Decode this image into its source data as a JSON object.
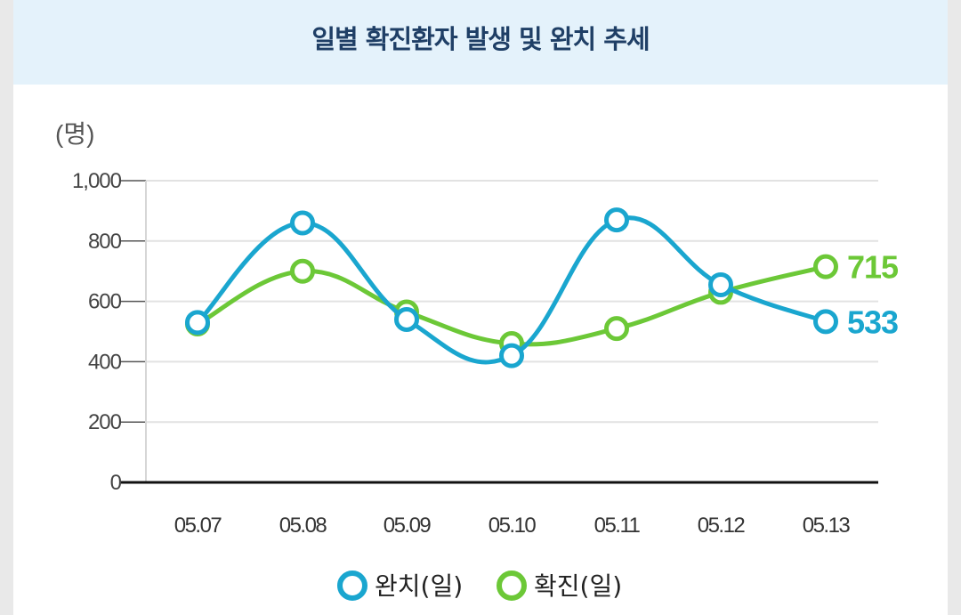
{
  "colors": {
    "cured": "#1aa6cf",
    "confirmed": "#6cc837"
  },
  "chart_data": {
    "type": "line",
    "title": "일별 확진환자 발생 및 완치 추세",
    "ylabel": "(명)",
    "xlabel": "",
    "ylim": [
      0,
      1000
    ],
    "yticks": [
      0,
      200,
      400,
      600,
      800,
      1000
    ],
    "ytick_labels": [
      "0",
      "200",
      "400",
      "600",
      "800",
      "1,000"
    ],
    "categories": [
      "05.07",
      "05.08",
      "05.09",
      "05.10",
      "05.11",
      "05.12",
      "05.13"
    ],
    "series": [
      {
        "key": "cured",
        "name": "완치(일)",
        "values": [
          530,
          860,
          540,
          420,
          870,
          655,
          533
        ],
        "end_label": "533"
      },
      {
        "key": "confirmed",
        "name": "확진(일)",
        "values": [
          525,
          700,
          565,
          460,
          510,
          630,
          715
        ],
        "end_label": "715"
      }
    ],
    "legend": "bottom-center"
  }
}
